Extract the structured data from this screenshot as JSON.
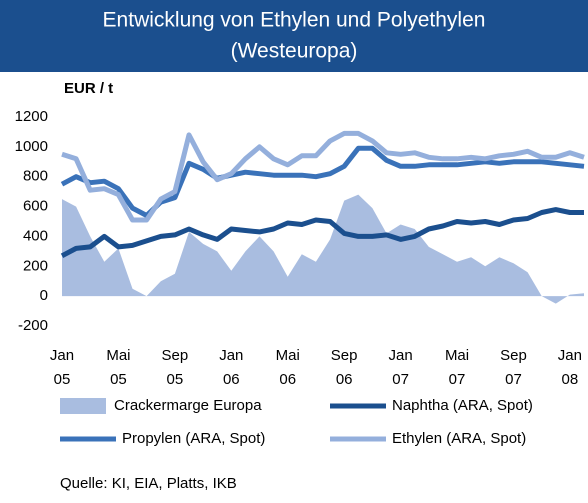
{
  "chart_data": {
    "type": "line",
    "title": "Entwicklung von Ethylen und Polyethylen",
    "subtitle": "(Westeuropa)",
    "y_axis_label": "EUR  /  t",
    "source": "Quelle: KI, EIA, Platts, IKB",
    "categories": [
      [
        "Jan",
        "05"
      ],
      null,
      null,
      null,
      [
        "Mai",
        "05"
      ],
      null,
      null,
      null,
      [
        "Sep",
        "05"
      ],
      null,
      null,
      null,
      [
        "Jan",
        "06"
      ],
      null,
      null,
      null,
      [
        "Mai",
        "06"
      ],
      null,
      null,
      null,
      [
        "Sep",
        "06"
      ],
      null,
      null,
      null,
      [
        "Jan",
        "07"
      ],
      null,
      null,
      null,
      [
        "Mai",
        "07"
      ],
      null,
      null,
      null,
      [
        "Sep",
        "07"
      ],
      null,
      null,
      null,
      [
        "Jan",
        "08"
      ],
      null
    ],
    "ylim": [
      -200,
      1200
    ],
    "yticks": [
      -200,
      0,
      200,
      400,
      600,
      800,
      1000,
      1200
    ],
    "grid": false,
    "series": [
      {
        "name": "Crackermarge Europa",
        "color": "#a9bde0",
        "style": "area",
        "values": [
          650,
          600,
          400,
          230,
          320,
          50,
          0,
          100,
          150,
          430,
          350,
          300,
          170,
          300,
          400,
          300,
          130,
          280,
          230,
          380,
          640,
          680,
          590,
          420,
          480,
          450,
          330,
          280,
          230,
          260,
          200,
          260,
          220,
          160,
          0,
          -50,
          10,
          20
        ]
      },
      {
        "name": "Naphtha (ARA, Spot)",
        "color": "#1b4f8e",
        "style": "line",
        "values": [
          270,
          320,
          330,
          400,
          330,
          340,
          370,
          400,
          410,
          450,
          410,
          380,
          450,
          440,
          430,
          450,
          490,
          480,
          510,
          500,
          420,
          400,
          400,
          410,
          380,
          400,
          450,
          470,
          500,
          490,
          500,
          480,
          510,
          520,
          560,
          580,
          560,
          560
        ]
      },
      {
        "name": "Propylen (ARA, Spot)",
        "color": "#3a72b9",
        "style": "line",
        "values": [
          750,
          800,
          760,
          770,
          720,
          590,
          540,
          630,
          660,
          890,
          850,
          790,
          810,
          830,
          820,
          810,
          810,
          810,
          800,
          820,
          870,
          990,
          990,
          910,
          870,
          870,
          880,
          880,
          880,
          890,
          900,
          890,
          900,
          900,
          900,
          890,
          880,
          870
        ]
      },
      {
        "name": "Ethylen (ARA, Spot)",
        "color": "#94afdc",
        "style": "line",
        "values": [
          950,
          920,
          710,
          720,
          680,
          510,
          510,
          650,
          700,
          1080,
          900,
          780,
          820,
          920,
          1000,
          920,
          880,
          940,
          940,
          1040,
          1090,
          1090,
          1040,
          960,
          950,
          960,
          930,
          920,
          920,
          930,
          920,
          940,
          950,
          970,
          930,
          930,
          960,
          930
        ]
      }
    ]
  }
}
